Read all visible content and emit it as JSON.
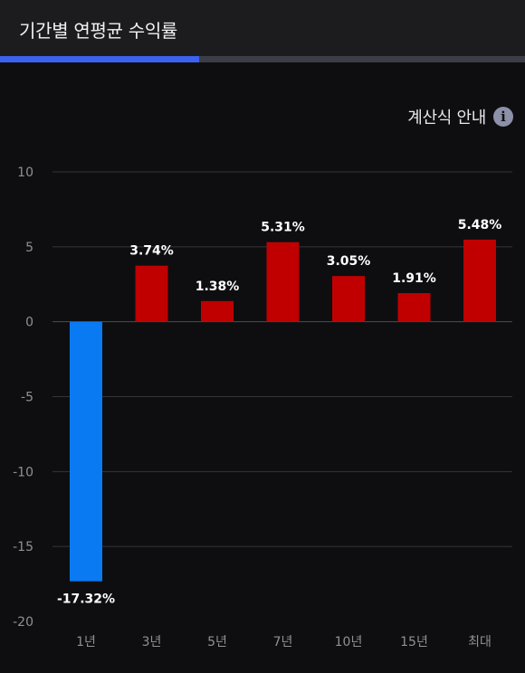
{
  "header": {
    "title": "기간별 연평균 수익률",
    "progress": 0.38
  },
  "calc_guide": {
    "label": "계산식 안내",
    "icon": "info-icon"
  },
  "colors": {
    "positive": "#c00000",
    "negative": "#0a7af2",
    "progress": "#3b63f0"
  },
  "chart_data": {
    "type": "bar",
    "categories": [
      "1년",
      "3년",
      "5년",
      "7년",
      "10년",
      "15년",
      "최대"
    ],
    "values": [
      -17.32,
      3.74,
      1.38,
      5.31,
      3.05,
      1.91,
      5.48
    ],
    "data_labels": [
      "-17.32%",
      "3.74%",
      "1.38%",
      "5.31%",
      "3.05%",
      "1.91%",
      "5.48%"
    ],
    "ylim": [
      -20,
      10
    ],
    "yticks": [
      10,
      5,
      0,
      -5,
      -10,
      -15,
      -20
    ],
    "title": "",
    "xlabel": "",
    "ylabel": "",
    "grid": true
  }
}
